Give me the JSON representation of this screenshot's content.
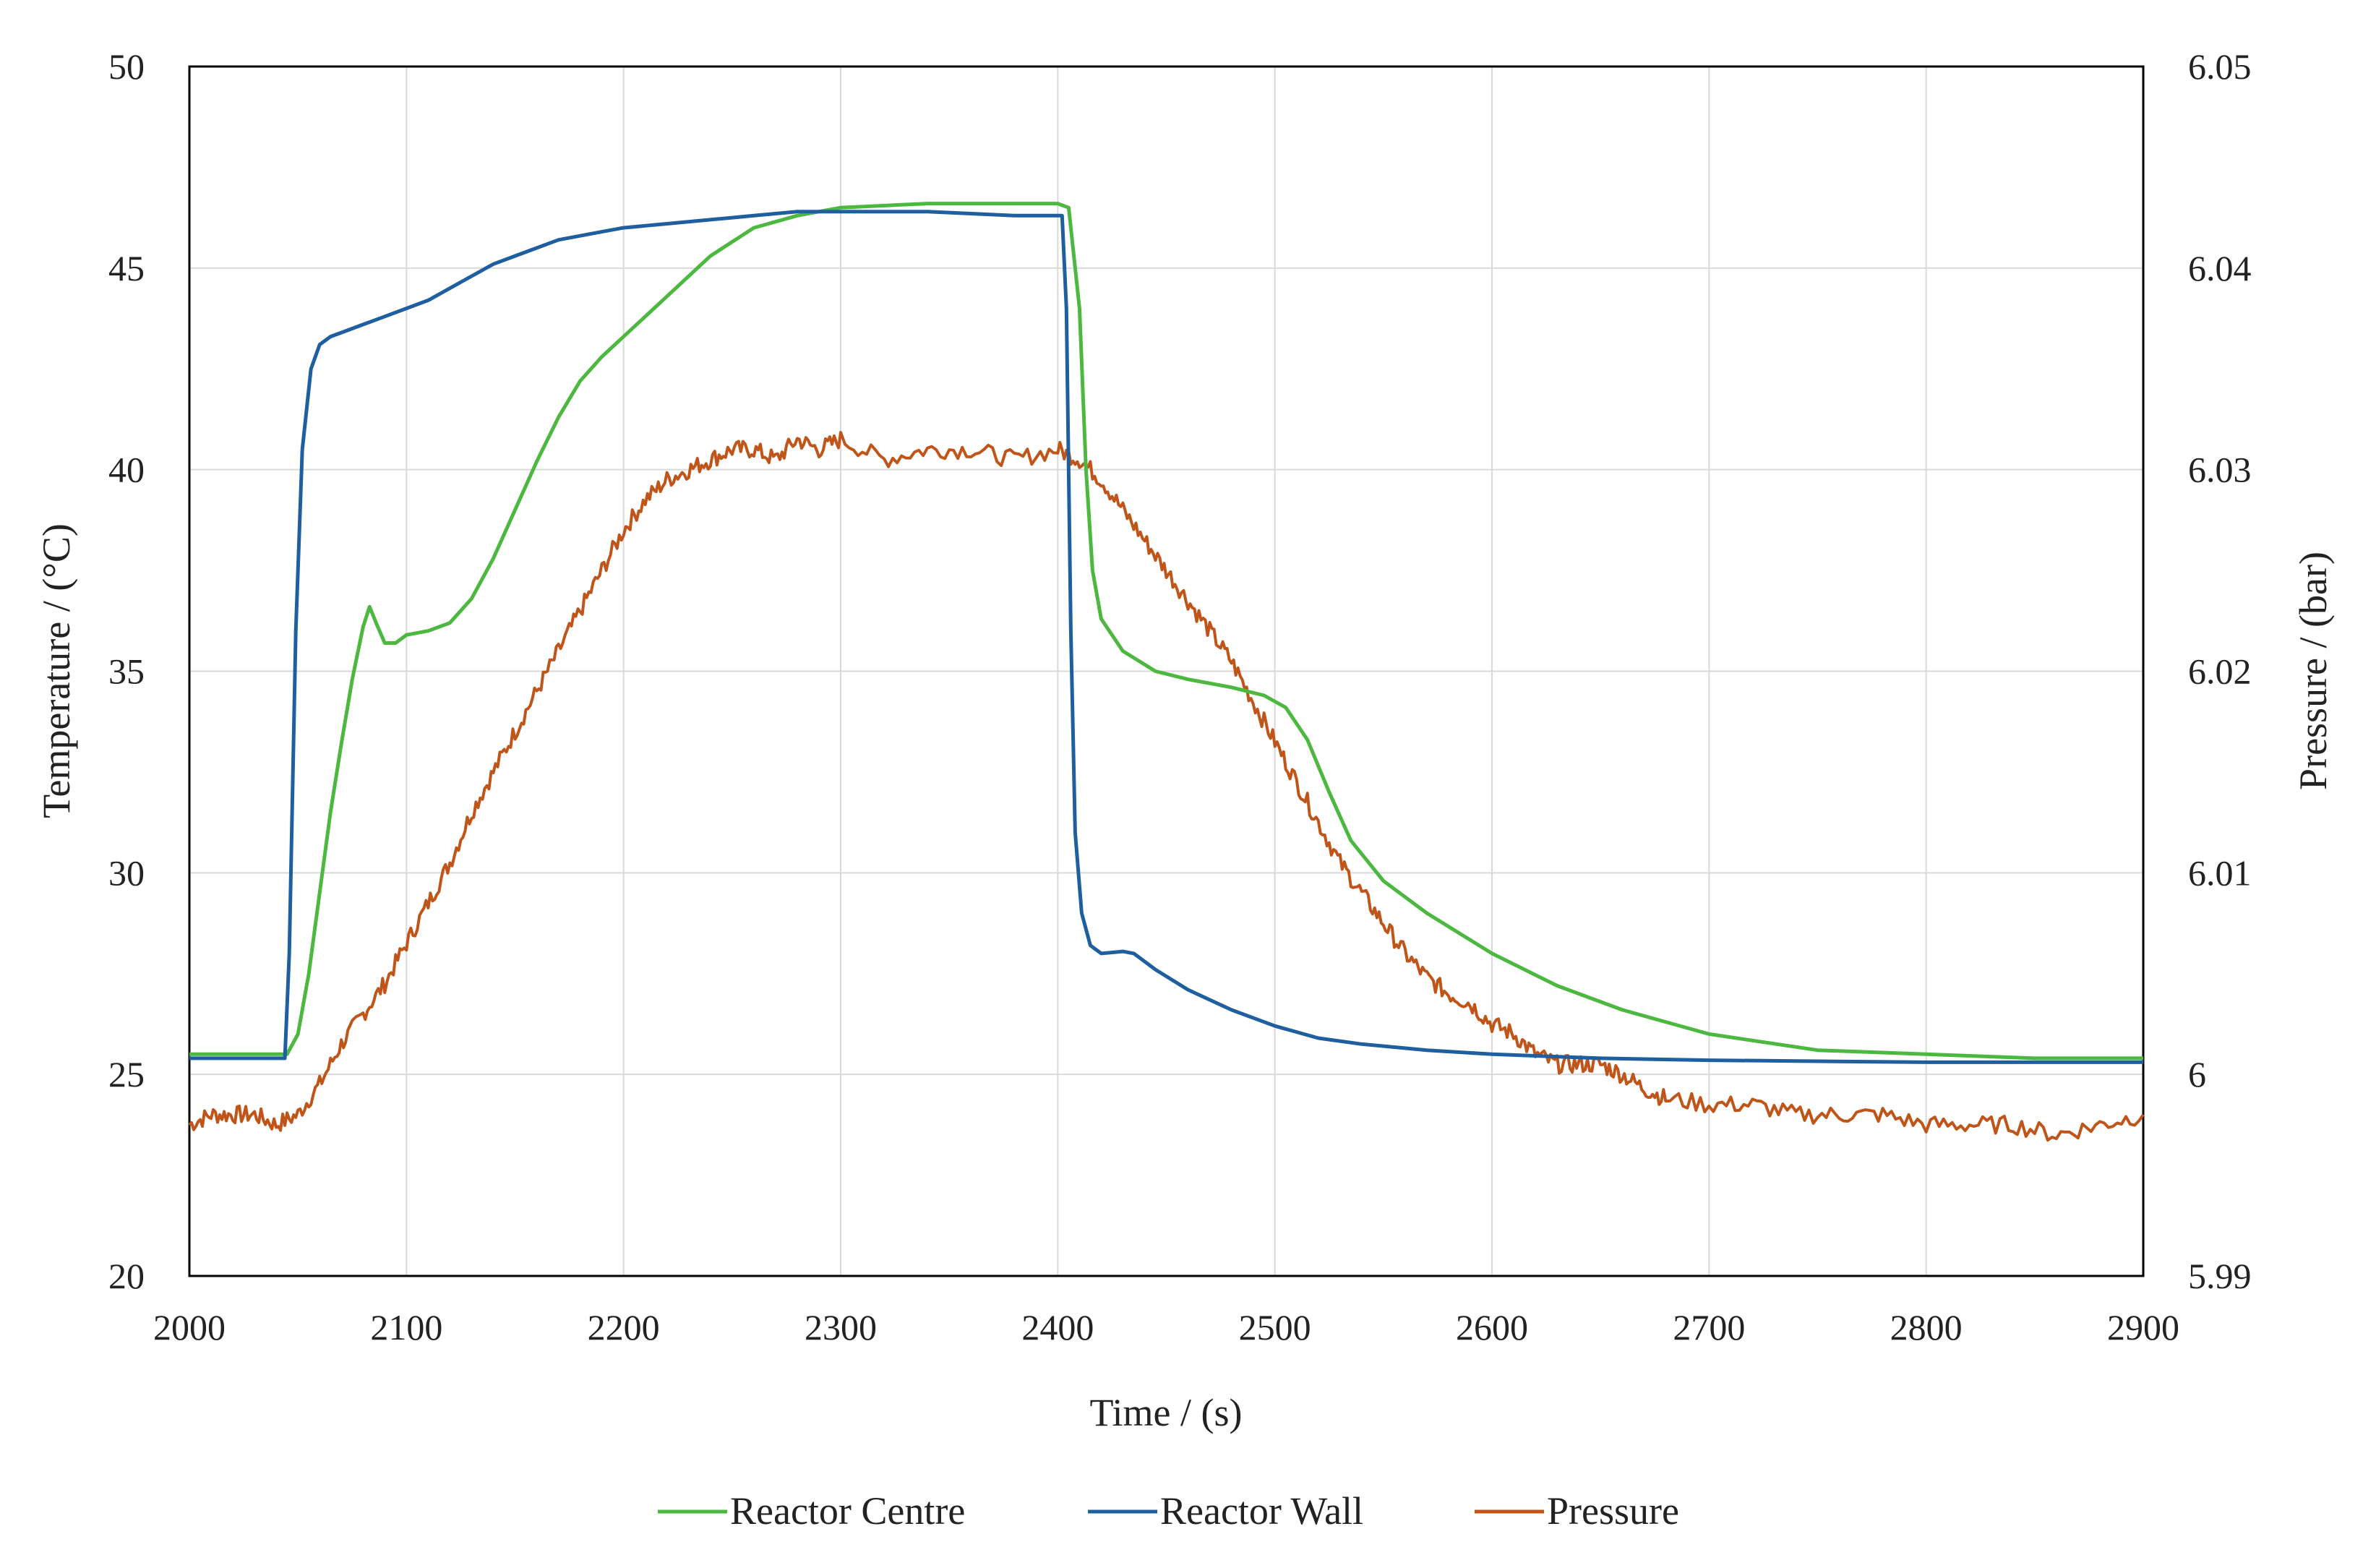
{
  "chart_data": {
    "type": "line",
    "title": "",
    "xlabel": "Time / (s)",
    "ylabel": "Temperature / (°C)",
    "y2label": "Pressure / (bar)",
    "xlim": [
      2000,
      2900
    ],
    "ylim": [
      20,
      50
    ],
    "y2lim": [
      5.99,
      6.05
    ],
    "x_ticks": [
      "2000",
      "2100",
      "2200",
      "2300",
      "2400",
      "2500",
      "2600",
      "2700",
      "2800",
      "2900"
    ],
    "y_ticks": [
      "20",
      "25",
      "30",
      "35",
      "40",
      "45",
      "50"
    ],
    "y2_ticks": [
      "5.99",
      "6",
      "6.01",
      "6.02",
      "6.03",
      "6.04",
      "6.05"
    ],
    "grid": true,
    "legend_position": "bottom",
    "series": [
      {
        "name": "Reactor Centre",
        "axis": "left",
        "color": "#4cb83f",
        "points": [
          [
            2000,
            25.5
          ],
          [
            2040,
            25.5
          ],
          [
            2045,
            25.5
          ],
          [
            2050,
            26.0
          ],
          [
            2055,
            27.5
          ],
          [
            2060,
            29.5
          ],
          [
            2065,
            31.5
          ],
          [
            2070,
            33.2
          ],
          [
            2075,
            34.8
          ],
          [
            2080,
            36.1
          ],
          [
            2083,
            36.6
          ],
          [
            2086,
            36.2
          ],
          [
            2090,
            35.7
          ],
          [
            2095,
            35.7
          ],
          [
            2100,
            35.9
          ],
          [
            2110,
            36.0
          ],
          [
            2120,
            36.2
          ],
          [
            2130,
            36.8
          ],
          [
            2140,
            37.8
          ],
          [
            2150,
            39.0
          ],
          [
            2160,
            40.2
          ],
          [
            2170,
            41.3
          ],
          [
            2180,
            42.2
          ],
          [
            2190,
            42.8
          ],
          [
            2200,
            43.3
          ],
          [
            2220,
            44.3
          ],
          [
            2240,
            45.3
          ],
          [
            2260,
            46.0
          ],
          [
            2280,
            46.3
          ],
          [
            2300,
            46.5
          ],
          [
            2340,
            46.6
          ],
          [
            2380,
            46.6
          ],
          [
            2400,
            46.6
          ],
          [
            2405,
            46.5
          ],
          [
            2410,
            44.0
          ],
          [
            2413,
            40.0
          ],
          [
            2416,
            37.5
          ],
          [
            2420,
            36.3
          ],
          [
            2430,
            35.5
          ],
          [
            2445,
            35.0
          ],
          [
            2460,
            34.8
          ],
          [
            2480,
            34.6
          ],
          [
            2495,
            34.4
          ],
          [
            2505,
            34.1
          ],
          [
            2515,
            33.3
          ],
          [
            2525,
            32.0
          ],
          [
            2535,
            30.8
          ],
          [
            2550,
            29.8
          ],
          [
            2570,
            29.0
          ],
          [
            2600,
            28.0
          ],
          [
            2630,
            27.2
          ],
          [
            2660,
            26.6
          ],
          [
            2700,
            26.0
          ],
          [
            2750,
            25.6
          ],
          [
            2800,
            25.5
          ],
          [
            2850,
            25.4
          ],
          [
            2900,
            25.4
          ]
        ]
      },
      {
        "name": "Reactor Wall",
        "axis": "left",
        "color": "#1f5fa0",
        "points": [
          [
            2000,
            25.4
          ],
          [
            2044,
            25.4
          ],
          [
            2046,
            28.0
          ],
          [
            2049,
            36.0
          ],
          [
            2052,
            40.5
          ],
          [
            2056,
            42.5
          ],
          [
            2060,
            43.1
          ],
          [
            2065,
            43.3
          ],
          [
            2070,
            43.4
          ],
          [
            2080,
            43.6
          ],
          [
            2090,
            43.8
          ],
          [
            2100,
            44.0
          ],
          [
            2110,
            44.2
          ],
          [
            2120,
            44.5
          ],
          [
            2130,
            44.8
          ],
          [
            2140,
            45.1
          ],
          [
            2150,
            45.3
          ],
          [
            2160,
            45.5
          ],
          [
            2170,
            45.7
          ],
          [
            2180,
            45.8
          ],
          [
            2190,
            45.9
          ],
          [
            2200,
            46.0
          ],
          [
            2220,
            46.1
          ],
          [
            2240,
            46.2
          ],
          [
            2260,
            46.3
          ],
          [
            2280,
            46.4
          ],
          [
            2300,
            46.4
          ],
          [
            2340,
            46.4
          ],
          [
            2380,
            46.3
          ],
          [
            2402,
            46.3
          ],
          [
            2404,
            44.0
          ],
          [
            2406,
            36.0
          ],
          [
            2408,
            31.0
          ],
          [
            2411,
            29.0
          ],
          [
            2415,
            28.2
          ],
          [
            2420,
            28.0
          ],
          [
            2430,
            28.05
          ],
          [
            2435,
            28.0
          ],
          [
            2445,
            27.6
          ],
          [
            2460,
            27.1
          ],
          [
            2480,
            26.6
          ],
          [
            2500,
            26.2
          ],
          [
            2520,
            25.9
          ],
          [
            2540,
            25.75
          ],
          [
            2570,
            25.6
          ],
          [
            2600,
            25.5
          ],
          [
            2650,
            25.4
          ],
          [
            2700,
            25.35
          ],
          [
            2800,
            25.3
          ],
          [
            2850,
            25.3
          ],
          [
            2900,
            25.3
          ]
        ]
      },
      {
        "name": "Pressure",
        "axis": "right",
        "color": "#c0551a",
        "points": [
          [
            2000,
            5.9975
          ],
          [
            2010,
            5.998
          ],
          [
            2020,
            5.998
          ],
          [
            2030,
            5.998
          ],
          [
            2040,
            5.9975
          ],
          [
            2050,
            5.998
          ],
          [
            2060,
            5.9995
          ],
          [
            2070,
            6.0015
          ],
          [
            2080,
            6.003
          ],
          [
            2090,
            6.0045
          ],
          [
            2100,
            6.0065
          ],
          [
            2110,
            6.0085
          ],
          [
            2120,
            6.0105
          ],
          [
            2130,
            6.013
          ],
          [
            2140,
            6.015
          ],
          [
            2150,
            6.017
          ],
          [
            2160,
            6.019
          ],
          [
            2170,
            6.021
          ],
          [
            2180,
            6.023
          ],
          [
            2190,
            6.025
          ],
          [
            2200,
            6.027
          ],
          [
            2210,
            6.0285
          ],
          [
            2220,
            6.0295
          ],
          [
            2230,
            6.03
          ],
          [
            2240,
            6.0305
          ],
          [
            2250,
            6.031
          ],
          [
            2260,
            6.031
          ],
          [
            2270,
            6.0305
          ],
          [
            2280,
            6.0315
          ],
          [
            2290,
            6.031
          ],
          [
            2300,
            6.0315
          ],
          [
            2320,
            6.0305
          ],
          [
            2340,
            6.031
          ],
          [
            2360,
            6.031
          ],
          [
            2380,
            6.0305
          ],
          [
            2400,
            6.031
          ],
          [
            2410,
            6.0305
          ],
          [
            2420,
            6.0295
          ],
          [
            2430,
            6.028
          ],
          [
            2440,
            6.0265
          ],
          [
            2450,
            6.025
          ],
          [
            2460,
            6.0235
          ],
          [
            2470,
            6.022
          ],
          [
            2480,
            6.0205
          ],
          [
            2490,
            6.0185
          ],
          [
            2500,
            6.0165
          ],
          [
            2510,
            6.0145
          ],
          [
            2520,
            6.0125
          ],
          [
            2530,
            6.0105
          ],
          [
            2540,
            6.009
          ],
          [
            2550,
            6.0075
          ],
          [
            2560,
            6.006
          ],
          [
            2570,
            6.0048
          ],
          [
            2580,
            6.004
          ],
          [
            2590,
            6.0035
          ],
          [
            2600,
            6.0025
          ],
          [
            2610,
            6.002
          ],
          [
            2620,
            6.001
          ],
          [
            2630,
            6.0005
          ],
          [
            2640,
            6.0005
          ],
          [
            2650,
            6.0005
          ],
          [
            2660,
            6.0
          ],
          [
            2670,
            5.9993
          ],
          [
            2680,
            5.9988
          ],
          [
            2700,
            5.9985
          ],
          [
            2720,
            5.9985
          ],
          [
            2740,
            5.998
          ],
          [
            2760,
            5.998
          ],
          [
            2780,
            5.998
          ],
          [
            2800,
            5.9975
          ],
          [
            2820,
            5.9975
          ],
          [
            2840,
            5.9975
          ],
          [
            2860,
            5.997
          ],
          [
            2880,
            5.9975
          ],
          [
            2900,
            5.998
          ]
        ]
      }
    ]
  }
}
